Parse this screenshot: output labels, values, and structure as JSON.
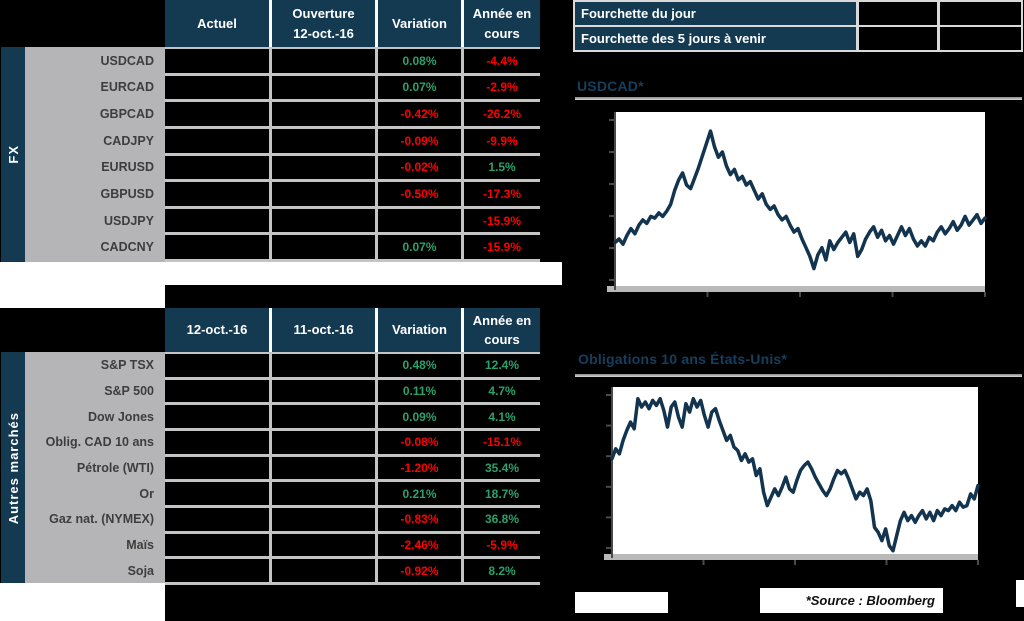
{
  "colors": {
    "navy": "#143A52",
    "label_bg": "#B5B5B7",
    "grid_line": "#C4C4C4",
    "positive": "#2BA169",
    "negative": "#FF0000",
    "chart_line": "#12344E",
    "title_blue": "#163F5E",
    "axis_band": "#B9B9B9"
  },
  "fx_table": {
    "group_label": "FX",
    "headers": [
      [
        "Actuel",
        ""
      ],
      [
        "Ouverture",
        "12-oct.-16"
      ],
      [
        "Variation",
        ""
      ],
      [
        "Année en",
        "cours"
      ]
    ],
    "rows": [
      {
        "label": "USDCAD",
        "c1": "",
        "c2": "",
        "variation": "0.08%",
        "variation_sign": "pos",
        "ytd": "-4.4%",
        "ytd_sign": "neg"
      },
      {
        "label": "EURCAD",
        "c1": "",
        "c2": "",
        "variation": "0.07%",
        "variation_sign": "pos",
        "ytd": "-2.9%",
        "ytd_sign": "neg"
      },
      {
        "label": "GBPCAD",
        "c1": "",
        "c2": "",
        "variation": "-0.42%",
        "variation_sign": "neg",
        "ytd": "-26.2%",
        "ytd_sign": "neg"
      },
      {
        "label": "CADJPY",
        "c1": "",
        "c2": "",
        "variation": "-0.09%",
        "variation_sign": "neg",
        "ytd": "-9.9%",
        "ytd_sign": "neg"
      },
      {
        "label": "EURUSD",
        "c1": "",
        "c2": "",
        "variation": "-0.02%",
        "variation_sign": "neg",
        "ytd": "1.5%",
        "ytd_sign": "pos"
      },
      {
        "label": "GBPUSD",
        "c1": "",
        "c2": "",
        "variation": "-0.50%",
        "variation_sign": "neg",
        "ytd": "-17.3%",
        "ytd_sign": "neg"
      },
      {
        "label": "USDJPY",
        "c1": "",
        "c2": "",
        "variation": "",
        "variation_sign": "",
        "ytd": "-15.9%",
        "ytd_sign": "neg"
      },
      {
        "label": "CADCNY",
        "c1": "",
        "c2": "",
        "variation": "0.07%",
        "variation_sign": "pos",
        "ytd": "-15.9%",
        "ytd_sign": "neg"
      }
    ]
  },
  "markets_table": {
    "group_label": "Autres marchés",
    "headers": [
      [
        "12-oct.-16",
        ""
      ],
      [
        "11-oct.-16",
        ""
      ],
      [
        "Variation",
        ""
      ],
      [
        "Année en",
        "cours"
      ]
    ],
    "rows": [
      {
        "label": "S&P TSX",
        "c1": "",
        "c2": "",
        "variation": "0.48%",
        "variation_sign": "pos",
        "ytd": "12.4%",
        "ytd_sign": "pos"
      },
      {
        "label": "S&P 500",
        "c1": "",
        "c2": "",
        "variation": "0.11%",
        "variation_sign": "pos",
        "ytd": "4.7%",
        "ytd_sign": "pos"
      },
      {
        "label": "Dow Jones",
        "c1": "",
        "c2": "",
        "variation": "0.09%",
        "variation_sign": "pos",
        "ytd": "4.1%",
        "ytd_sign": "pos"
      },
      {
        "label": "Oblig. CAD 10 ans",
        "c1": "",
        "c2": "",
        "variation": "-0.08%",
        "variation_sign": "neg",
        "ytd": "-15.1%",
        "ytd_sign": "neg"
      },
      {
        "label": "Pétrole (WTI)",
        "c1": "",
        "c2": "",
        "variation": "-1.20%",
        "variation_sign": "neg",
        "ytd": "35.4%",
        "ytd_sign": "pos"
      },
      {
        "label": "Or",
        "c1": "",
        "c2": "",
        "variation": "0.21%",
        "variation_sign": "pos",
        "ytd": "18.7%",
        "ytd_sign": "pos"
      },
      {
        "label": "Gaz nat. (NYMEX)",
        "c1": "",
        "c2": "",
        "variation": "-0.83%",
        "variation_sign": "neg",
        "ytd": "36.8%",
        "ytd_sign": "pos"
      },
      {
        "label": "Maïs",
        "c1": "",
        "c2": "",
        "variation": "-2.46%",
        "variation_sign": "neg",
        "ytd": "-5.9%",
        "ytd_sign": "neg"
      },
      {
        "label": "Soja",
        "c1": "",
        "c2": "",
        "variation": "-0.92%",
        "variation_sign": "neg",
        "ytd": "8.2%",
        "ytd_sign": "pos"
      }
    ]
  },
  "ranges_table": {
    "rows": [
      {
        "label": "Fourchette du jour",
        "values": [
          "",
          ""
        ]
      },
      {
        "label": "Fourchette des 5 jours à venir",
        "values": [
          "",
          ""
        ]
      }
    ]
  },
  "charts": [
    {
      "title": "USDCAD*"
    },
    {
      "title": "Obligations 10 ans États-Unis*"
    }
  ],
  "source_note": "*Source : Bloomberg",
  "chart_data": [
    {
      "type": "line",
      "title": "USDCAD*",
      "tick_labels_visible": false,
      "y_ticks_count": 6,
      "x_ticks_count": 4,
      "plot_bg": "#FFFFFF",
      "line_color": "#12344E",
      "values_norm_pct_of_plot_height": [
        25,
        27,
        24,
        29,
        33,
        30,
        35,
        38,
        36,
        40,
        39,
        42,
        40,
        43,
        47,
        55,
        61,
        65,
        58,
        56,
        62,
        68,
        75,
        82,
        89,
        80,
        74,
        77,
        69,
        64,
        67,
        61,
        63,
        58,
        60,
        55,
        50,
        53,
        47,
        44,
        46,
        41,
        38,
        40,
        35,
        31,
        33,
        27,
        22,
        17,
        10,
        18,
        22,
        15,
        26,
        21,
        25,
        28,
        31,
        25,
        30,
        17,
        21,
        27,
        31,
        34,
        28,
        32,
        26,
        29,
        24,
        29,
        34,
        29,
        33,
        27,
        23,
        26,
        23,
        28,
        26,
        31,
        34,
        30,
        33,
        37,
        32,
        35,
        40,
        35,
        38,
        41,
        36,
        39
      ]
    },
    {
      "type": "line",
      "title": "Obligations 10 ans États-Unis*",
      "tick_labels_visible": false,
      "y_ticks_count": 6,
      "x_ticks_count": 4,
      "plot_bg": "#FFFFFF",
      "line_color": "#12344E",
      "values_norm_pct_of_plot_height": [
        57,
        63,
        60,
        68,
        74,
        79,
        75,
        93,
        88,
        91,
        87,
        92,
        89,
        93,
        86,
        76,
        88,
        91,
        82,
        76,
        90,
        85,
        93,
        88,
        92,
        83,
        76,
        85,
        87,
        80,
        74,
        68,
        71,
        64,
        62,
        56,
        60,
        55,
        57,
        47,
        51,
        37,
        29,
        34,
        39,
        35,
        40,
        46,
        39,
        37,
        44,
        50,
        53,
        55,
        51,
        46,
        42,
        38,
        35,
        39,
        45,
        50,
        48,
        50,
        45,
        39,
        33,
        37,
        35,
        39,
        32,
        16,
        13,
        8,
        15,
        5,
        2,
        11,
        20,
        25,
        20,
        23,
        19,
        23,
        26,
        21,
        25,
        20,
        26,
        23,
        27,
        26,
        29,
        26,
        31,
        28,
        29,
        36,
        33,
        41
      ]
    }
  ]
}
